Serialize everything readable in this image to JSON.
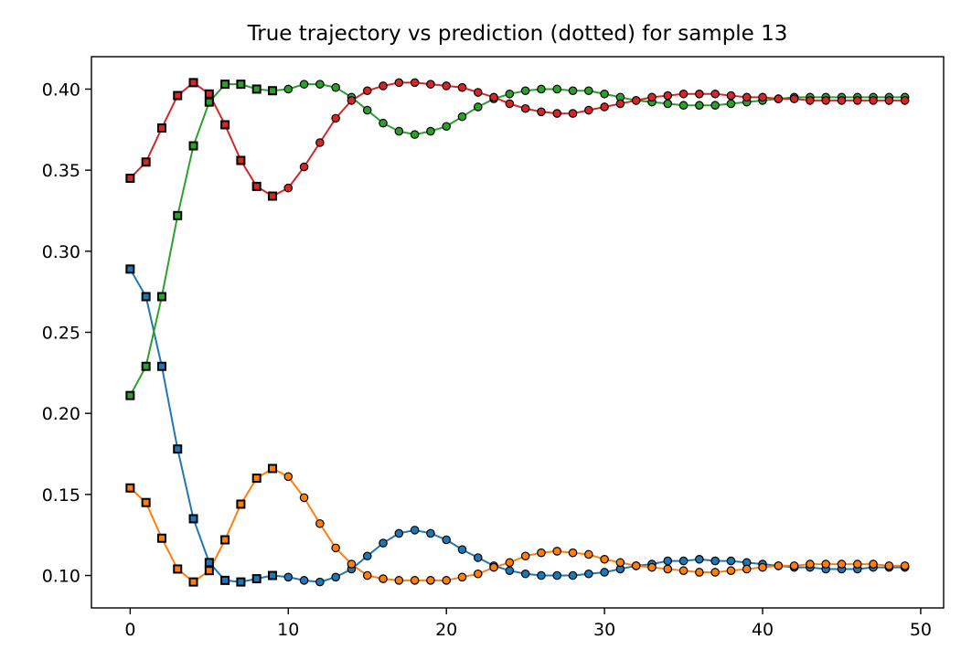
{
  "chart_data": {
    "type": "line",
    "title": "True trajectory vs prediction (dotted) for sample 13",
    "xlabel": "",
    "ylabel": "",
    "xlim": [
      -2.45,
      51.45
    ],
    "ylim": [
      0.08,
      0.42
    ],
    "xticks": [
      0,
      10,
      20,
      30,
      40,
      50
    ],
    "yticks": [
      0.1,
      0.15,
      0.2,
      0.25,
      0.3,
      0.35,
      0.4
    ],
    "xtick_labels": [
      "0",
      "10",
      "20",
      "30",
      "40",
      "50"
    ],
    "ytick_labels": [
      "0.10",
      "0.15",
      "0.20",
      "0.25",
      "0.30",
      "0.35",
      "0.40"
    ],
    "grid": false,
    "legend": null,
    "marker_split_index": 10,
    "x": [
      0,
      1,
      2,
      3,
      4,
      5,
      6,
      7,
      8,
      9,
      10,
      11,
      12,
      13,
      14,
      15,
      16,
      17,
      18,
      19,
      20,
      21,
      22,
      23,
      24,
      25,
      26,
      27,
      28,
      29,
      30,
      31,
      32,
      33,
      34,
      35,
      36,
      37,
      38,
      39,
      40,
      41,
      42,
      43,
      44,
      45,
      46,
      47,
      48,
      49
    ],
    "series": [
      {
        "color": "#1f77b4",
        "values": [
          0.289,
          0.272,
          0.229,
          0.178,
          0.135,
          0.108,
          0.097,
          0.096,
          0.098,
          0.1,
          0.099,
          0.097,
          0.096,
          0.099,
          0.104,
          0.112,
          0.12,
          0.126,
          0.128,
          0.126,
          0.122,
          0.116,
          0.111,
          0.106,
          0.103,
          0.101,
          0.1,
          0.1,
          0.1,
          0.101,
          0.102,
          0.104,
          0.106,
          0.107,
          0.109,
          0.109,
          0.11,
          0.109,
          0.109,
          0.108,
          0.107,
          0.106,
          0.105,
          0.105,
          0.104,
          0.104,
          0.104,
          0.105,
          0.105,
          0.105
        ]
      },
      {
        "color": "#ff7f0e",
        "values": [
          0.154,
          0.145,
          0.123,
          0.104,
          0.096,
          0.103,
          0.122,
          0.144,
          0.16,
          0.166,
          0.161,
          0.148,
          0.132,
          0.117,
          0.107,
          0.1,
          0.098,
          0.097,
          0.097,
          0.097,
          0.097,
          0.099,
          0.101,
          0.105,
          0.108,
          0.112,
          0.114,
          0.115,
          0.114,
          0.113,
          0.11,
          0.108,
          0.106,
          0.105,
          0.104,
          0.103,
          0.102,
          0.102,
          0.103,
          0.104,
          0.105,
          0.106,
          0.106,
          0.107,
          0.107,
          0.107,
          0.107,
          0.107,
          0.106,
          0.106
        ]
      },
      {
        "color": "#2ca02c",
        "values": [
          0.211,
          0.229,
          0.272,
          0.322,
          0.365,
          0.392,
          0.403,
          0.403,
          0.4,
          0.399,
          0.4,
          0.403,
          0.403,
          0.401,
          0.395,
          0.387,
          0.379,
          0.374,
          0.372,
          0.374,
          0.377,
          0.383,
          0.389,
          0.394,
          0.397,
          0.399,
          0.4,
          0.4,
          0.399,
          0.399,
          0.397,
          0.395,
          0.393,
          0.392,
          0.391,
          0.39,
          0.39,
          0.39,
          0.391,
          0.392,
          0.393,
          0.394,
          0.395,
          0.395,
          0.395,
          0.395,
          0.395,
          0.395,
          0.395,
          0.395
        ]
      },
      {
        "color": "#d62728",
        "values": [
          0.345,
          0.355,
          0.376,
          0.396,
          0.404,
          0.397,
          0.378,
          0.356,
          0.34,
          0.334,
          0.339,
          0.352,
          0.367,
          0.382,
          0.393,
          0.399,
          0.402,
          0.404,
          0.404,
          0.403,
          0.402,
          0.401,
          0.398,
          0.395,
          0.391,
          0.388,
          0.386,
          0.385,
          0.385,
          0.387,
          0.389,
          0.391,
          0.393,
          0.395,
          0.396,
          0.397,
          0.397,
          0.397,
          0.396,
          0.395,
          0.395,
          0.394,
          0.394,
          0.393,
          0.393,
          0.393,
          0.393,
          0.393,
          0.393,
          0.393
        ]
      }
    ]
  },
  "style": {
    "axis_color": "#000000",
    "marker_edge_color": "#000000",
    "background": "#ffffff"
  }
}
